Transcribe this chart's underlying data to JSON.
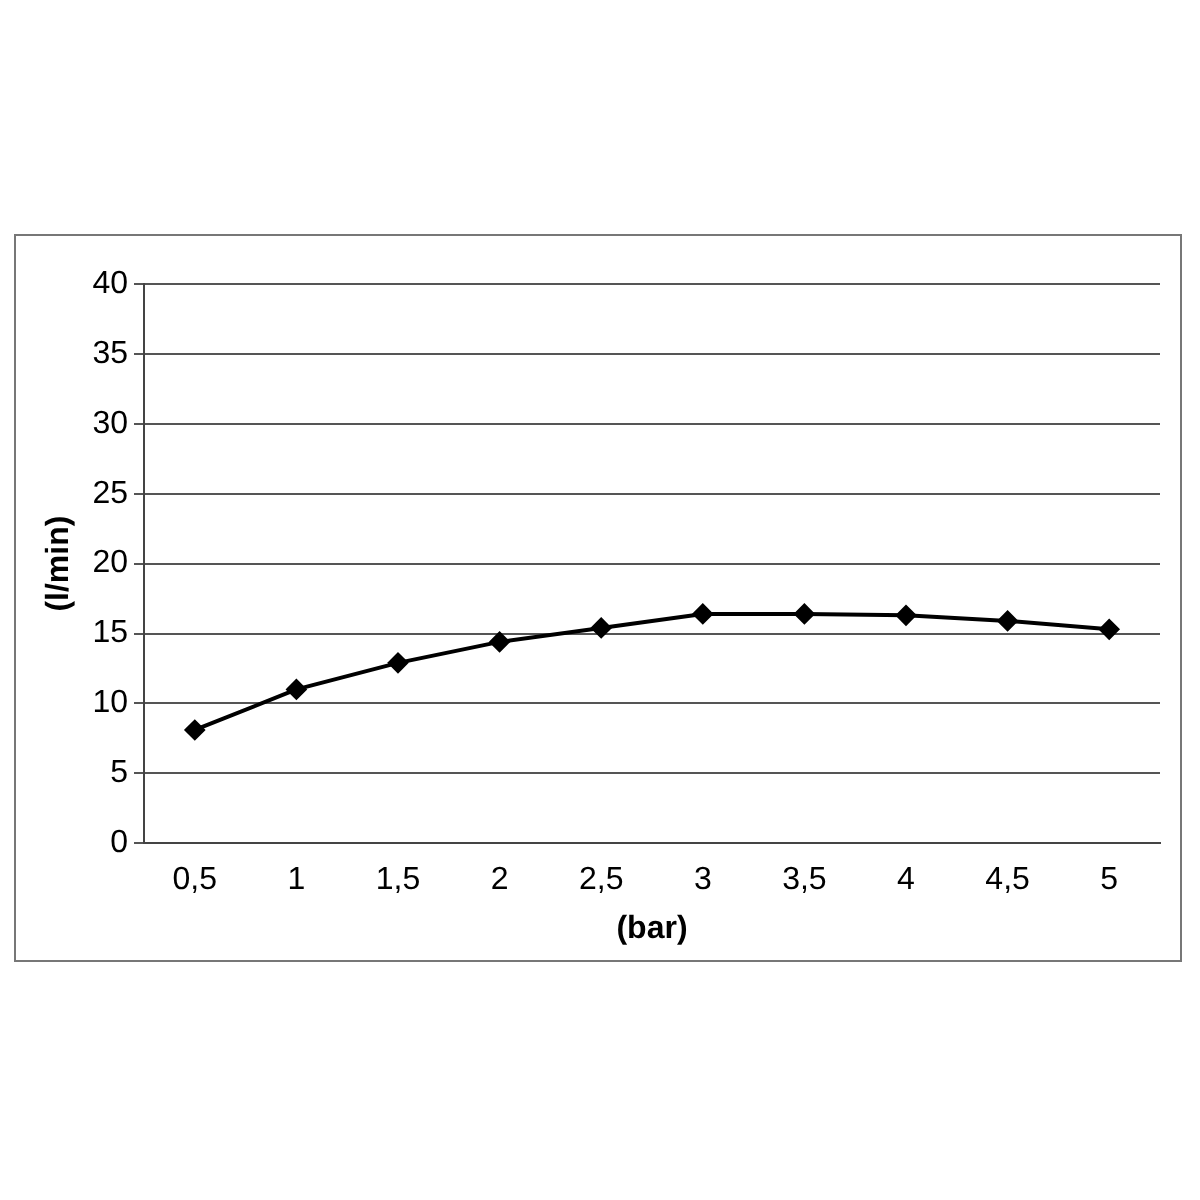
{
  "chart_data": {
    "type": "line",
    "xlabel": "(bar)",
    "ylabel": "(l/min)",
    "categories": [
      "0,5",
      "1",
      "1,5",
      "2",
      "2,5",
      "3",
      "3,5",
      "4",
      "4,5",
      "5"
    ],
    "series": [
      {
        "color": "#000000",
        "values": [
          8.1,
          11.0,
          12.9,
          14.4,
          15.4,
          16.4,
          16.4,
          16.3,
          15.9,
          15.3
        ]
      }
    ],
    "ylim": [
      0,
      40
    ],
    "yticks": [
      0,
      5,
      10,
      15,
      20,
      25,
      30,
      35,
      40
    ],
    "grid": "y",
    "legend": false,
    "marker": "diamond",
    "line_style": "solid"
  }
}
